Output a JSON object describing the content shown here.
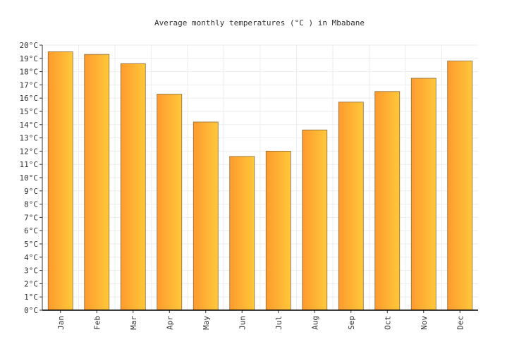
{
  "chart_data": {
    "type": "bar",
    "title": "Average monthly temperatures (°C ) in Mbabane",
    "xlabel": "",
    "ylabel": "",
    "categories": [
      "Jan",
      "Feb",
      "Mar",
      "Apr",
      "May",
      "Jun",
      "Jul",
      "Aug",
      "Sep",
      "Oct",
      "Nov",
      "Dec"
    ],
    "values": [
      19.5,
      19.3,
      18.6,
      16.3,
      14.2,
      11.6,
      12.0,
      13.6,
      15.7,
      16.5,
      17.5,
      18.8
    ],
    "ylim": [
      0,
      20
    ],
    "y_ticks": [
      "0°C",
      "1°C",
      "2°C",
      "3°C",
      "4°C",
      "5°C",
      "6°C",
      "7°C",
      "8°C",
      "9°C",
      "10°C",
      "11°C",
      "12°C",
      "13°C",
      "14°C",
      "15°C",
      "16°C",
      "17°C",
      "18°C",
      "19°C",
      "20°C"
    ],
    "grid": true,
    "legend": "none",
    "bar_gradient": [
      "#ff9a2e",
      "#ffc83a"
    ],
    "bar_stroke": "#8a6a3a"
  }
}
